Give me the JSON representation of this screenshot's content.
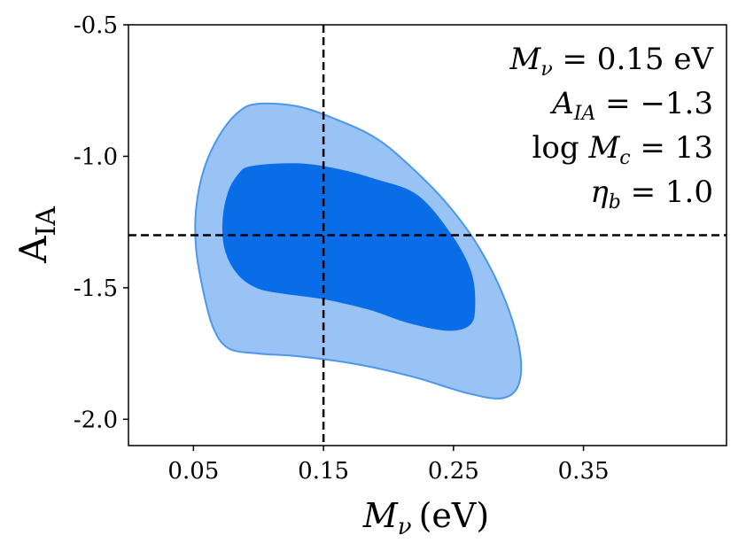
{
  "chart_data": {
    "type": "contour",
    "xlabel_symbol": "M",
    "xlabel_subscript": "ν",
    "xlabel_unit": "(eV)",
    "ylabel_symbol": "A",
    "ylabel_subscript": "IA",
    "xlim": [
      0.0,
      0.46
    ],
    "ylim": [
      -2.1,
      -0.5
    ],
    "xticks": [
      0.05,
      0.15,
      0.25,
      0.35
    ],
    "xtick_labels": [
      "0.05",
      "0.15",
      "0.25",
      "0.35"
    ],
    "yticks": [
      -0.5,
      -1.0,
      -1.5,
      -2.0
    ],
    "ytick_labels": [
      "-0.5",
      "-1.0",
      "-1.5",
      "-2.0"
    ],
    "truth": {
      "x": 0.15,
      "y": -1.3
    },
    "annotations": [
      {
        "text": "Mν = 0.15 eV"
      },
      {
        "text": "AIA = −1.3"
      },
      {
        "text": "log Mc = 13"
      },
      {
        "text": "ηb = 1.0"
      }
    ],
    "contours": [
      {
        "level": "2-sigma",
        "fill": "#99c3f5",
        "stroke": "#4d97ea",
        "points": [
          [
            0.1,
            -0.8
          ],
          [
            0.13,
            -0.81
          ],
          [
            0.16,
            -0.86
          ],
          [
            0.19,
            -0.93
          ],
          [
            0.215,
            -1.03
          ],
          [
            0.245,
            -1.18
          ],
          [
            0.27,
            -1.35
          ],
          [
            0.29,
            -1.55
          ],
          [
            0.301,
            -1.74
          ],
          [
            0.3,
            -1.87
          ],
          [
            0.287,
            -1.92
          ],
          [
            0.26,
            -1.9
          ],
          [
            0.22,
            -1.84
          ],
          [
            0.175,
            -1.79
          ],
          [
            0.13,
            -1.76
          ],
          [
            0.1,
            -1.75
          ],
          [
            0.077,
            -1.73
          ],
          [
            0.065,
            -1.65
          ],
          [
            0.057,
            -1.5
          ],
          [
            0.052,
            -1.35
          ],
          [
            0.052,
            -1.2
          ],
          [
            0.058,
            -1.05
          ],
          [
            0.07,
            -0.92
          ],
          [
            0.085,
            -0.83
          ]
        ]
      },
      {
        "level": "1-sigma",
        "fill": "#0a6de8",
        "stroke": "#0a6de8",
        "points": [
          [
            0.095,
            -1.04
          ],
          [
            0.13,
            -1.03
          ],
          [
            0.16,
            -1.05
          ],
          [
            0.19,
            -1.09
          ],
          [
            0.222,
            -1.15
          ],
          [
            0.248,
            -1.3
          ],
          [
            0.263,
            -1.44
          ],
          [
            0.266,
            -1.57
          ],
          [
            0.262,
            -1.64
          ],
          [
            0.245,
            -1.66
          ],
          [
            0.215,
            -1.63
          ],
          [
            0.185,
            -1.58
          ],
          [
            0.15,
            -1.54
          ],
          [
            0.12,
            -1.52
          ],
          [
            0.1,
            -1.5
          ],
          [
            0.085,
            -1.45
          ],
          [
            0.075,
            -1.36
          ],
          [
            0.073,
            -1.25
          ],
          [
            0.077,
            -1.14
          ],
          [
            0.085,
            -1.07
          ]
        ]
      }
    ]
  }
}
